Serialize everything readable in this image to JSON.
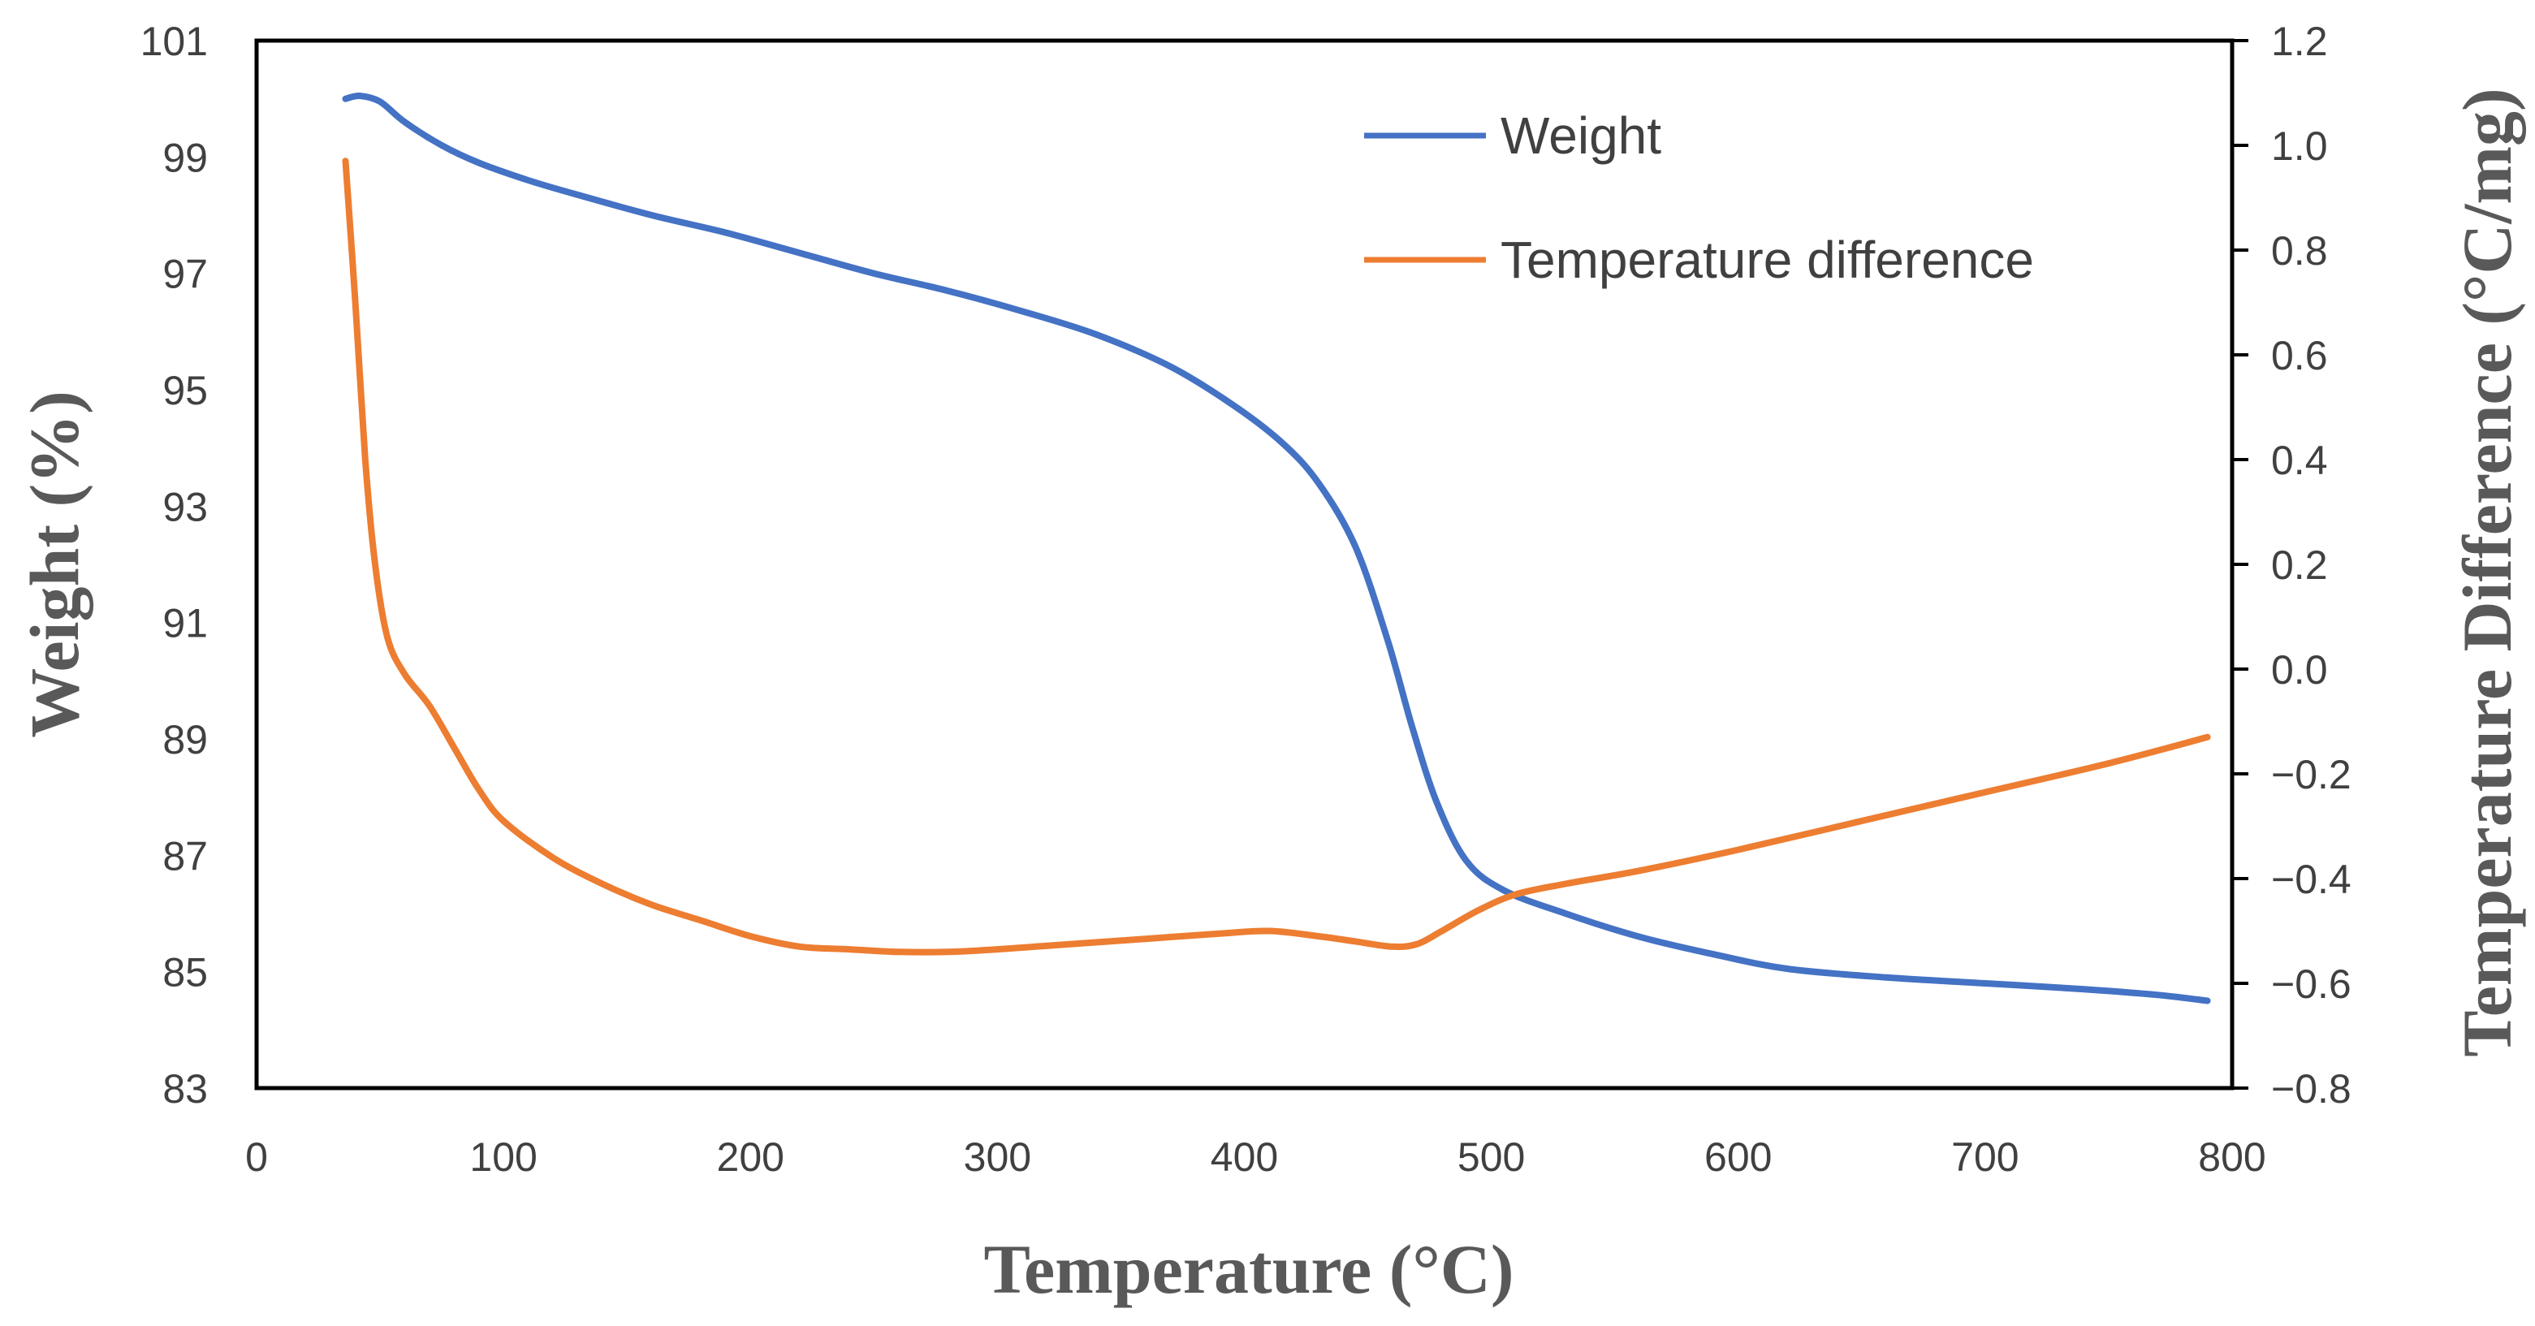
{
  "chart_data": {
    "type": "line",
    "title": "",
    "xlabel": "Temperature (°C)",
    "ylabel_left": "Weight (%)",
    "ylabel_right": "Temperature Difference (°C/mg)",
    "xlim": [
      0,
      800
    ],
    "ylim_left": [
      83,
      101
    ],
    "ylim_right": [
      -0.8,
      1.2
    ],
    "x_ticks": [
      0,
      100,
      200,
      300,
      400,
      500,
      600,
      700,
      800
    ],
    "y_left_ticks": [
      83,
      85,
      87,
      89,
      91,
      93,
      95,
      97,
      99,
      101
    ],
    "y_right_ticks": [
      "−0.8",
      "−0.6",
      "−0.4",
      "−0.2",
      "0.0",
      "0.2",
      "0.4",
      "0.6",
      "0.8",
      "1.0",
      "1.2"
    ],
    "grid": false,
    "legend_position": "top-right",
    "series": [
      {
        "name": "Weight",
        "axis": "left",
        "color": "#4472C4",
        "points": [
          [
            36,
            100.0
          ],
          [
            42,
            100.05
          ],
          [
            50,
            99.95
          ],
          [
            60,
            99.6
          ],
          [
            75,
            99.2
          ],
          [
            90,
            98.9
          ],
          [
            110,
            98.6
          ],
          [
            130,
            98.35
          ],
          [
            160,
            98.0
          ],
          [
            190,
            97.7
          ],
          [
            220,
            97.35
          ],
          [
            250,
            97.0
          ],
          [
            280,
            96.7
          ],
          [
            310,
            96.35
          ],
          [
            340,
            95.95
          ],
          [
            370,
            95.4
          ],
          [
            395,
            94.75
          ],
          [
            415,
            94.1
          ],
          [
            430,
            93.4
          ],
          [
            445,
            92.3
          ],
          [
            458,
            90.7
          ],
          [
            468,
            89.2
          ],
          [
            478,
            87.9
          ],
          [
            490,
            86.9
          ],
          [
            505,
            86.4
          ],
          [
            530,
            86.0
          ],
          [
            560,
            85.6
          ],
          [
            590,
            85.3
          ],
          [
            620,
            85.05
          ],
          [
            660,
            84.9
          ],
          [
            700,
            84.8
          ],
          [
            740,
            84.7
          ],
          [
            770,
            84.6
          ],
          [
            790,
            84.5
          ]
        ]
      },
      {
        "name": "Temperature difference",
        "axis": "right",
        "color": "#ED7D31",
        "points": [
          [
            36,
            0.97
          ],
          [
            40,
            0.7
          ],
          [
            44,
            0.4
          ],
          [
            48,
            0.2
          ],
          [
            53,
            0.06
          ],
          [
            60,
            -0.01
          ],
          [
            70,
            -0.07
          ],
          [
            80,
            -0.15
          ],
          [
            90,
            -0.23
          ],
          [
            100,
            -0.29
          ],
          [
            120,
            -0.36
          ],
          [
            140,
            -0.41
          ],
          [
            160,
            -0.45
          ],
          [
            180,
            -0.48
          ],
          [
            200,
            -0.51
          ],
          [
            220,
            -0.53
          ],
          [
            240,
            -0.535
          ],
          [
            260,
            -0.54
          ],
          [
            280,
            -0.54
          ],
          [
            300,
            -0.535
          ],
          [
            330,
            -0.525
          ],
          [
            360,
            -0.515
          ],
          [
            390,
            -0.505
          ],
          [
            410,
            -0.5
          ],
          [
            430,
            -0.51
          ],
          [
            445,
            -0.52
          ],
          [
            460,
            -0.53
          ],
          [
            470,
            -0.525
          ],
          [
            480,
            -0.5
          ],
          [
            495,
            -0.46
          ],
          [
            510,
            -0.43
          ],
          [
            530,
            -0.41
          ],
          [
            560,
            -0.385
          ],
          [
            600,
            -0.345
          ],
          [
            650,
            -0.29
          ],
          [
            700,
            -0.235
          ],
          [
            750,
            -0.18
          ],
          [
            790,
            -0.13
          ]
        ]
      }
    ]
  }
}
